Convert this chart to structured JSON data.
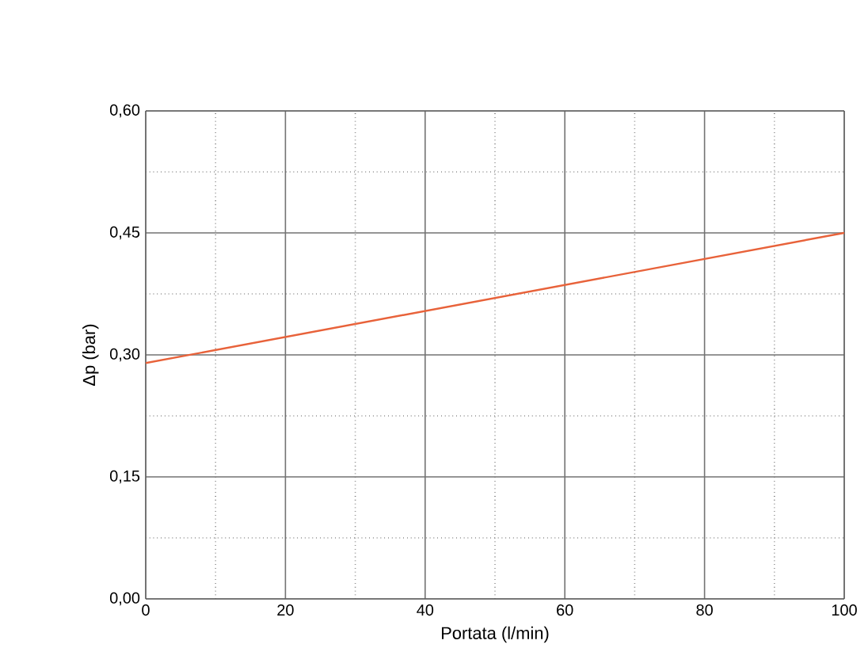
{
  "chart_data": {
    "type": "line",
    "xlabel": "Portata (l/min)",
    "ylabel": "Δp (bar)",
    "x": [
      0,
      100
    ],
    "series": [
      {
        "color": "#e8623a",
        "values": [
          0.29,
          0.45
        ]
      }
    ],
    "xlim": [
      0,
      100
    ],
    "xticks": [
      0,
      20,
      40,
      60,
      80,
      100
    ],
    "ylim": [
      0,
      0.6
    ],
    "yticks": [
      {
        "value": 0,
        "label": "0,00"
      },
      {
        "value": 0.15,
        "label": "0,15"
      },
      {
        "value": 0.3,
        "label": "0,30"
      },
      {
        "value": 0.45,
        "label": "0,45"
      },
      {
        "value": 0.6,
        "label": "0,60"
      }
    ],
    "grid": true,
    "marker": "none",
    "line_style": "solid"
  }
}
